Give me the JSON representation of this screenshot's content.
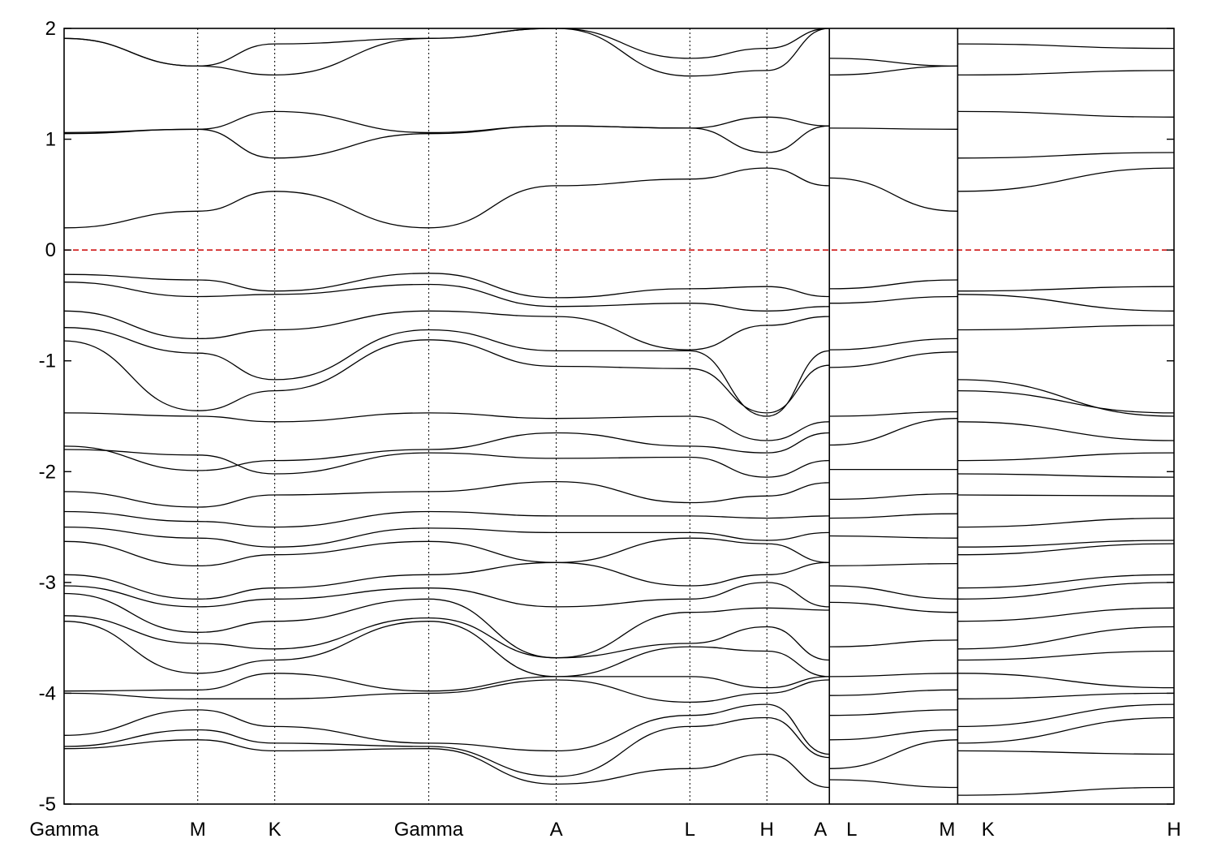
{
  "chart_data": {
    "type": "line",
    "title": "",
    "xlabel": "",
    "ylabel": "",
    "ylim": [
      -5,
      2
    ],
    "yticks": [
      "2",
      "1",
      "0",
      "-1",
      "-2",
      "-3",
      "-4",
      "-5"
    ],
    "ytick_values": [
      2,
      1,
      0,
      -1,
      -2,
      -3,
      -4,
      -5
    ],
    "fermi_level": 0,
    "colors": {
      "fermi_line": "#cc0000",
      "bands": "#000000",
      "frame": "#000000",
      "vlines": "#000000"
    },
    "x_range": [
      0,
      1
    ],
    "segments": [
      {
        "start": 0.0,
        "end": 0.6895
      },
      {
        "start": 0.6895,
        "end": 0.8051
      },
      {
        "start": 0.8051,
        "end": 1.0
      }
    ],
    "kpoint_labels": [
      {
        "label": "Gamma",
        "x": 0.0
      },
      {
        "label": "M",
        "x": 0.1204
      },
      {
        "label": "K",
        "x": 0.1898
      },
      {
        "label": "Gamma",
        "x": 0.3285
      },
      {
        "label": "A",
        "x": 0.4434
      },
      {
        "label": "L",
        "x": 0.5638
      },
      {
        "label": "H",
        "x": 0.6332
      },
      {
        "label": "A",
        "x": 0.6895
      },
      {
        "label": "L",
        "x": 0.7026
      },
      {
        "label": "M",
        "x": 0.8051
      },
      {
        "label": "K",
        "x": 0.8244
      },
      {
        "label": "H",
        "x": 1.0
      }
    ],
    "vlines": [
      0.1204,
      0.1898,
      0.3285,
      0.4434,
      0.5638,
      0.6332
    ],
    "series": [
      {
        "seg": 0,
        "x": [
          0,
          0.1204,
          0.1898,
          0.3285,
          0.4434,
          0.5638,
          0.6332,
          0.6895
        ],
        "y": [
          0.2,
          0.35,
          0.53,
          0.2,
          0.58,
          0.64,
          0.74,
          0.58
        ]
      },
      {
        "seg": 0,
        "x": [
          0,
          0.1204,
          0.1898,
          0.3285,
          0.4434,
          0.5638,
          0.6332,
          0.6895
        ],
        "y": [
          1.05,
          1.09,
          0.83,
          1.05,
          1.12,
          1.1,
          0.88,
          1.12
        ]
      },
      {
        "seg": 0,
        "x": [
          0,
          0.1204,
          0.1898,
          0.3285,
          0.4434,
          0.5638,
          0.6332,
          0.6895
        ],
        "y": [
          1.06,
          1.09,
          1.25,
          1.06,
          1.12,
          1.1,
          1.2,
          1.12
        ]
      },
      {
        "seg": 0,
        "x": [
          0,
          0.1204,
          0.1898,
          0.3285,
          0.4434,
          0.5638,
          0.6332,
          0.6895
        ],
        "y": [
          1.91,
          1.66,
          1.58,
          1.91,
          2.0,
          1.57,
          1.62,
          2.0
        ]
      },
      {
        "seg": 0,
        "x": [
          0,
          0.1204,
          0.1898,
          0.3285,
          0.4434,
          0.5638,
          0.6332,
          0.6895
        ],
        "y": [
          1.91,
          1.66,
          1.86,
          1.91,
          2.0,
          1.73,
          1.82,
          2.0
        ]
      },
      {
        "seg": 0,
        "x": [
          0,
          0.1204,
          0.1898,
          0.3285,
          0.4434,
          0.5638,
          0.6332,
          0.6895
        ],
        "y": [
          -0.22,
          -0.27,
          -0.37,
          -0.21,
          -0.43,
          -0.35,
          -0.33,
          -0.42
        ]
      },
      {
        "seg": 0,
        "x": [
          0,
          0.1204,
          0.1898,
          0.3285,
          0.4434,
          0.5638,
          0.6332,
          0.6895
        ],
        "y": [
          -0.29,
          -0.42,
          -0.4,
          -0.31,
          -0.51,
          -0.48,
          -0.55,
          -0.51
        ]
      },
      {
        "seg": 0,
        "x": [
          0,
          0.1204,
          0.1898,
          0.3285,
          0.4434,
          0.5638,
          0.6332,
          0.6895
        ],
        "y": [
          -0.55,
          -0.8,
          -0.72,
          -0.55,
          -0.6,
          -0.9,
          -0.68,
          -0.6
        ]
      },
      {
        "seg": 0,
        "x": [
          0,
          0.1204,
          0.1898,
          0.3285,
          0.4434,
          0.5638,
          0.6332,
          0.6895
        ],
        "y": [
          -0.7,
          -0.93,
          -1.17,
          -0.72,
          -0.91,
          -0.91,
          -1.5,
          -0.91
        ]
      },
      {
        "seg": 0,
        "x": [
          0,
          0.1204,
          0.1898,
          0.3285,
          0.4434,
          0.5638,
          0.6332,
          0.6895
        ],
        "y": [
          -0.82,
          -1.45,
          -1.27,
          -0.81,
          -1.05,
          -1.07,
          -1.47,
          -1.04
        ]
      },
      {
        "seg": 0,
        "x": [
          0,
          0.1204,
          0.1898,
          0.3285,
          0.4434,
          0.5638,
          0.6332,
          0.6895
        ],
        "y": [
          -1.47,
          -1.5,
          -1.55,
          -1.47,
          -1.52,
          -1.5,
          -1.72,
          -1.55
        ]
      },
      {
        "seg": 0,
        "x": [
          0,
          0.1204,
          0.1898,
          0.3285,
          0.4434,
          0.5638,
          0.6332,
          0.6895
        ],
        "y": [
          -1.77,
          -1.99,
          -1.9,
          -1.8,
          -1.65,
          -1.77,
          -1.83,
          -1.65
        ]
      },
      {
        "seg": 0,
        "x": [
          0,
          0.1204,
          0.1898,
          0.3285,
          0.4434,
          0.5638,
          0.6332,
          0.6895
        ],
        "y": [
          -1.8,
          -1.85,
          -2.02,
          -1.83,
          -1.88,
          -1.87,
          -2.05,
          -1.9
        ]
      },
      {
        "seg": 0,
        "x": [
          0,
          0.1204,
          0.1898,
          0.3285,
          0.4434,
          0.5638,
          0.6332,
          0.6895
        ],
        "y": [
          -2.18,
          -2.32,
          -2.21,
          -2.18,
          -2.09,
          -2.28,
          -2.22,
          -2.1
        ]
      },
      {
        "seg": 0,
        "x": [
          0,
          0.1204,
          0.1898,
          0.3285,
          0.4434,
          0.5638,
          0.6332,
          0.6895
        ],
        "y": [
          -2.36,
          -2.45,
          -2.5,
          -2.36,
          -2.4,
          -2.4,
          -2.42,
          -2.4
        ]
      },
      {
        "seg": 0,
        "x": [
          0,
          0.1204,
          0.1898,
          0.3285,
          0.4434,
          0.5638,
          0.6332,
          0.6895
        ],
        "y": [
          -2.5,
          -2.6,
          -2.68,
          -2.51,
          -2.55,
          -2.55,
          -2.62,
          -2.55
        ]
      },
      {
        "seg": 0,
        "x": [
          0,
          0.1204,
          0.1898,
          0.3285,
          0.4434,
          0.5638,
          0.6332,
          0.6895
        ],
        "y": [
          -2.63,
          -2.85,
          -2.75,
          -2.63,
          -2.82,
          -2.6,
          -2.65,
          -2.82
        ]
      },
      {
        "seg": 0,
        "x": [
          0,
          0.1204,
          0.1898,
          0.3285,
          0.4434,
          0.5638,
          0.6332,
          0.6895
        ],
        "y": [
          -2.93,
          -3.15,
          -3.05,
          -2.93,
          -2.82,
          -3.03,
          -2.93,
          -2.82
        ]
      },
      {
        "seg": 0,
        "x": [
          0,
          0.1204,
          0.1898,
          0.3285,
          0.4434,
          0.5638,
          0.6332,
          0.6895
        ],
        "y": [
          -3.03,
          -3.22,
          -3.15,
          -3.05,
          -3.22,
          -3.15,
          -3.0,
          -3.22
        ]
      },
      {
        "seg": 0,
        "x": [
          0,
          0.1204,
          0.1898,
          0.3285,
          0.4434,
          0.5638,
          0.6332,
          0.6895
        ],
        "y": [
          -3.1,
          -3.45,
          -3.35,
          -3.15,
          -3.68,
          -3.27,
          -3.23,
          -3.25
        ]
      },
      {
        "seg": 0,
        "x": [
          0,
          0.1204,
          0.1898,
          0.3285,
          0.4434,
          0.5638,
          0.6332,
          0.6895
        ],
        "y": [
          -3.3,
          -3.55,
          -3.6,
          -3.32,
          -3.68,
          -3.55,
          -3.4,
          -3.7
        ]
      },
      {
        "seg": 0,
        "x": [
          0,
          0.1204,
          0.1898,
          0.3285,
          0.4434,
          0.5638,
          0.6332,
          0.6895
        ],
        "y": [
          -3.35,
          -3.82,
          -3.7,
          -3.35,
          -3.85,
          -3.58,
          -3.62,
          -3.85
        ]
      },
      {
        "seg": 0,
        "x": [
          0,
          0.1204,
          0.1898,
          0.3285,
          0.4434,
          0.5638,
          0.6332,
          0.6895
        ],
        "y": [
          -3.98,
          -3.97,
          -3.82,
          -3.98,
          -3.85,
          -3.85,
          -3.95,
          -3.85
        ]
      },
      {
        "seg": 0,
        "x": [
          0,
          0.1204,
          0.1898,
          0.3285,
          0.4434,
          0.5638,
          0.6332,
          0.6895
        ],
        "y": [
          -4.0,
          -4.05,
          -4.05,
          -4.0,
          -3.88,
          -4.08,
          -4.0,
          -3.88
        ]
      },
      {
        "seg": 0,
        "x": [
          0,
          0.1204,
          0.1898,
          0.3285,
          0.4434,
          0.5638,
          0.6332,
          0.6895
        ],
        "y": [
          -4.38,
          -4.15,
          -4.3,
          -4.45,
          -4.52,
          -4.2,
          -4.1,
          -4.55
        ]
      },
      {
        "seg": 0,
        "x": [
          0,
          0.1204,
          0.1898,
          0.3285,
          0.4434,
          0.5638,
          0.6332,
          0.6895
        ],
        "y": [
          -4.48,
          -4.33,
          -4.45,
          -4.48,
          -4.75,
          -4.3,
          -4.22,
          -4.58
        ]
      },
      {
        "seg": 0,
        "x": [
          0,
          0.1204,
          0.1898,
          0.3285,
          0.4434,
          0.5638,
          0.6332,
          0.6895
        ],
        "y": [
          -4.5,
          -4.42,
          -4.52,
          -4.5,
          -4.82,
          -4.68,
          -4.55,
          -4.85
        ]
      },
      {
        "seg": 1,
        "x": [
          0.6895,
          0.8051
        ],
        "y": [
          0.65,
          0.35
        ]
      },
      {
        "seg": 1,
        "x": [
          0.6895,
          0.8051
        ],
        "y": [
          1.1,
          1.09
        ]
      },
      {
        "seg": 1,
        "x": [
          0.6895,
          0.8051
        ],
        "y": [
          1.58,
          1.66
        ]
      },
      {
        "seg": 1,
        "x": [
          0.6895,
          0.8051
        ],
        "y": [
          1.73,
          1.66
        ]
      },
      {
        "seg": 1,
        "x": [
          0.6895,
          0.8051
        ],
        "y": [
          -0.35,
          -0.27
        ]
      },
      {
        "seg": 1,
        "x": [
          0.6895,
          0.8051
        ],
        "y": [
          -0.48,
          -0.42
        ]
      },
      {
        "seg": 1,
        "x": [
          0.6895,
          0.8051
        ],
        "y": [
          -0.9,
          -0.8
        ]
      },
      {
        "seg": 1,
        "x": [
          0.6895,
          0.8051
        ],
        "y": [
          -1.06,
          -0.92
        ]
      },
      {
        "seg": 1,
        "x": [
          0.6895,
          0.8051
        ],
        "y": [
          -1.5,
          -1.46
        ]
      },
      {
        "seg": 1,
        "x": [
          0.6895,
          0.8051
        ],
        "y": [
          -1.76,
          -1.52
        ]
      },
      {
        "seg": 1,
        "x": [
          0.6895,
          0.8051
        ],
        "y": [
          -1.98,
          -1.98
        ]
      },
      {
        "seg": 1,
        "x": [
          0.6895,
          0.8051
        ],
        "y": [
          -2.25,
          -2.2
        ]
      },
      {
        "seg": 1,
        "x": [
          0.6895,
          0.8051
        ],
        "y": [
          -2.42,
          -2.38
        ]
      },
      {
        "seg": 1,
        "x": [
          0.6895,
          0.8051
        ],
        "y": [
          -2.58,
          -2.6
        ]
      },
      {
        "seg": 1,
        "x": [
          0.6895,
          0.8051
        ],
        "y": [
          -2.85,
          -2.83
        ]
      },
      {
        "seg": 1,
        "x": [
          0.6895,
          0.8051
        ],
        "y": [
          -3.03,
          -3.15
        ]
      },
      {
        "seg": 1,
        "x": [
          0.6895,
          0.8051
        ],
        "y": [
          -3.18,
          -3.27
        ]
      },
      {
        "seg": 1,
        "x": [
          0.6895,
          0.8051
        ],
        "y": [
          -3.58,
          -3.52
        ]
      },
      {
        "seg": 1,
        "x": [
          0.6895,
          0.8051
        ],
        "y": [
          -3.85,
          -3.82
        ]
      },
      {
        "seg": 1,
        "x": [
          0.6895,
          0.8051
        ],
        "y": [
          -4.02,
          -3.97
        ]
      },
      {
        "seg": 1,
        "x": [
          0.6895,
          0.8051
        ],
        "y": [
          -4.2,
          -4.15
        ]
      },
      {
        "seg": 1,
        "x": [
          0.6895,
          0.8051
        ],
        "y": [
          -4.42,
          -4.33
        ]
      },
      {
        "seg": 1,
        "x": [
          0.6895,
          0.8051
        ],
        "y": [
          -4.68,
          -4.42
        ]
      },
      {
        "seg": 1,
        "x": [
          0.6895,
          0.8051
        ],
        "y": [
          -4.78,
          -4.85
        ]
      },
      {
        "seg": 2,
        "x": [
          0.8051,
          1.0
        ],
        "y": [
          0.53,
          0.74
        ]
      },
      {
        "seg": 2,
        "x": [
          0.8051,
          1.0
        ],
        "y": [
          0.83,
          0.88
        ]
      },
      {
        "seg": 2,
        "x": [
          0.8051,
          1.0
        ],
        "y": [
          1.25,
          1.2
        ]
      },
      {
        "seg": 2,
        "x": [
          0.8051,
          1.0
        ],
        "y": [
          1.58,
          1.62
        ]
      },
      {
        "seg": 2,
        "x": [
          0.8051,
          1.0
        ],
        "y": [
          1.86,
          1.82
        ]
      },
      {
        "seg": 2,
        "x": [
          0.8051,
          1.0
        ],
        "y": [
          -0.37,
          -0.33
        ]
      },
      {
        "seg": 2,
        "x": [
          0.8051,
          1.0
        ],
        "y": [
          -0.4,
          -0.55
        ]
      },
      {
        "seg": 2,
        "x": [
          0.8051,
          1.0
        ],
        "y": [
          -0.72,
          -0.68
        ]
      },
      {
        "seg": 2,
        "x": [
          0.8051,
          1.0
        ],
        "y": [
          -1.17,
          -1.5
        ]
      },
      {
        "seg": 2,
        "x": [
          0.8051,
          1.0
        ],
        "y": [
          -1.27,
          -1.47
        ]
      },
      {
        "seg": 2,
        "x": [
          0.8051,
          1.0
        ],
        "y": [
          -1.55,
          -1.72
        ]
      },
      {
        "seg": 2,
        "x": [
          0.8051,
          1.0
        ],
        "y": [
          -1.9,
          -1.83
        ]
      },
      {
        "seg": 2,
        "x": [
          0.8051,
          1.0
        ],
        "y": [
          -2.02,
          -2.05
        ]
      },
      {
        "seg": 2,
        "x": [
          0.8051,
          1.0
        ],
        "y": [
          -2.21,
          -2.22
        ]
      },
      {
        "seg": 2,
        "x": [
          0.8051,
          1.0
        ],
        "y": [
          -2.5,
          -2.42
        ]
      },
      {
        "seg": 2,
        "x": [
          0.8051,
          1.0
        ],
        "y": [
          -2.68,
          -2.62
        ]
      },
      {
        "seg": 2,
        "x": [
          0.8051,
          1.0
        ],
        "y": [
          -2.75,
          -2.65
        ]
      },
      {
        "seg": 2,
        "x": [
          0.8051,
          1.0
        ],
        "y": [
          -3.05,
          -2.93
        ]
      },
      {
        "seg": 2,
        "x": [
          0.8051,
          1.0
        ],
        "y": [
          -3.15,
          -3.0
        ]
      },
      {
        "seg": 2,
        "x": [
          0.8051,
          1.0
        ],
        "y": [
          -3.35,
          -3.23
        ]
      },
      {
        "seg": 2,
        "x": [
          0.8051,
          1.0
        ],
        "y": [
          -3.6,
          -3.4
        ]
      },
      {
        "seg": 2,
        "x": [
          0.8051,
          1.0
        ],
        "y": [
          -3.7,
          -3.62
        ]
      },
      {
        "seg": 2,
        "x": [
          0.8051,
          1.0
        ],
        "y": [
          -3.82,
          -3.95
        ]
      },
      {
        "seg": 2,
        "x": [
          0.8051,
          1.0
        ],
        "y": [
          -4.05,
          -4.0
        ]
      },
      {
        "seg": 2,
        "x": [
          0.8051,
          1.0
        ],
        "y": [
          -4.3,
          -4.1
        ]
      },
      {
        "seg": 2,
        "x": [
          0.8051,
          1.0
        ],
        "y": [
          -4.45,
          -4.22
        ]
      },
      {
        "seg": 2,
        "x": [
          0.8051,
          1.0
        ],
        "y": [
          -4.52,
          -4.55
        ]
      },
      {
        "seg": 2,
        "x": [
          0.8051,
          1.0
        ],
        "y": [
          -4.92,
          -4.85
        ]
      }
    ]
  }
}
